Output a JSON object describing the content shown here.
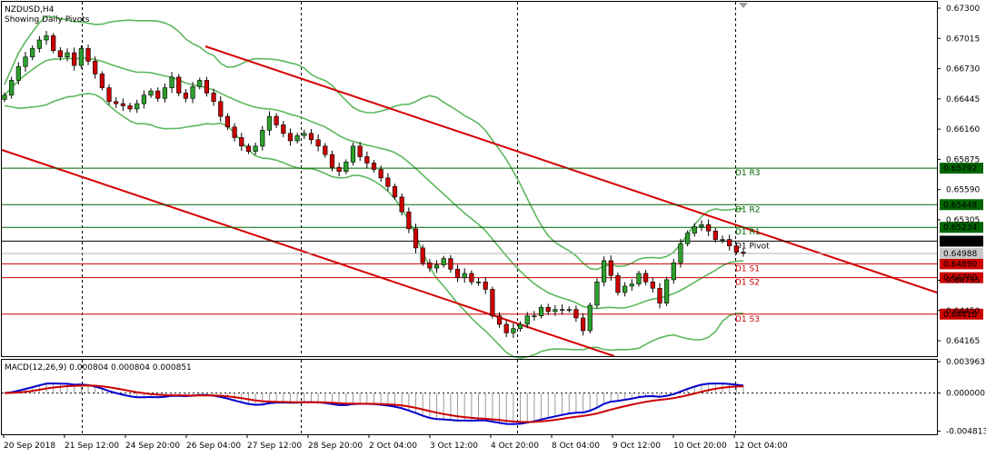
{
  "chart_data": {
    "type": "candlestick",
    "symbol_label": "NZDUSD,H4",
    "indicator_label": "Showing Daily Pivots",
    "price_axis": {
      "ticks": [
        "0.67300",
        "0.67015",
        "0.66730",
        "0.66445",
        "0.66160",
        "0.65875",
        "0.65590",
        "0.65305",
        "0.64735",
        "0.64450",
        "0.64165"
      ],
      "range": [
        0.6402,
        0.6736
      ]
    },
    "time_axis": {
      "labels": [
        "20 Sep 2018",
        "21 Sep 12:00",
        "24 Sep 20:00",
        "26 Sep 04:00",
        "27 Sep 12:00",
        "28 Sep 20:00",
        "2 Oct 04:00",
        "3 Oct 12:00",
        "4 Oct 20:00",
        "8 Oct 04:00",
        "9 Oct 12:00",
        "10 Oct 20:00",
        "12 Oct 04:00"
      ],
      "dashed_verticals_at_label_index": [
        1,
        5,
        9,
        12
      ]
    },
    "pivots": [
      {
        "name": "D1 R3",
        "value": 0.65792,
        "value_label": "0.65792",
        "color": "#006400"
      },
      {
        "name": "D1 R2",
        "value": 0.65448,
        "value_label": "0.65448",
        "color": "#006400"
      },
      {
        "name": "D1 R1",
        "value": 0.65234,
        "value_label": "0.65234",
        "color": "#006400"
      },
      {
        "name": "D1 Pivot",
        "value": 0.65104,
        "value_label": "0.65104",
        "color": "#000000"
      },
      {
        "name": "D1 S1",
        "value": 0.6489,
        "value_label": "0.64890",
        "color": "#cc0000"
      },
      {
        "name": "D1 S2",
        "value": 0.6476,
        "value_label": "0.64760",
        "color": "#cc0000"
      },
      {
        "name": "D1 S3",
        "value": 0.64416,
        "value_label": "0.64416",
        "color": "#cc0000"
      }
    ],
    "current_price": {
      "value": 0.64988,
      "value_label": "0.64988"
    },
    "channel_color": "#d40000",
    "bollinger_color": "#5cb85c",
    "bull_color": "#2ca02c",
    "bear_color": "#cc0000",
    "close_series": [
      0.6648,
      0.6662,
      0.6675,
      0.6684,
      0.6692,
      0.67,
      0.6704,
      0.669,
      0.6684,
      0.6688,
      0.6676,
      0.6692,
      0.668,
      0.6668,
      0.6655,
      0.6642,
      0.664,
      0.6638,
      0.6635,
      0.664,
      0.6648,
      0.6652,
      0.6645,
      0.6655,
      0.6665,
      0.665,
      0.6645,
      0.6656,
      0.6662,
      0.665,
      0.6642,
      0.6628,
      0.6618,
      0.6608,
      0.66,
      0.6595,
      0.66,
      0.6615,
      0.6628,
      0.662,
      0.6612,
      0.6605,
      0.661,
      0.6612,
      0.6606,
      0.66,
      0.6592,
      0.658,
      0.6576,
      0.6585,
      0.66,
      0.659,
      0.6584,
      0.6578,
      0.657,
      0.6562,
      0.6552,
      0.6538,
      0.6522,
      0.6504,
      0.649,
      0.6485,
      0.6488,
      0.6494,
      0.6484,
      0.6476,
      0.648,
      0.6472,
      0.6472,
      0.6465,
      0.644,
      0.6432,
      0.6424,
      0.6428,
      0.6432,
      0.644,
      0.644,
      0.6448,
      0.6444,
      0.6446,
      0.6446,
      0.6446,
      0.6438,
      0.6426,
      0.645,
      0.6472,
      0.6492,
      0.6478,
      0.6462,
      0.6468,
      0.647,
      0.648,
      0.6472,
      0.6466,
      0.6452,
      0.6474,
      0.649,
      0.6508,
      0.6518,
      0.6524,
      0.6526,
      0.652,
      0.6512,
      0.6512,
      0.6506,
      0.65,
      0.6499
    ],
    "macd": {
      "label": "MACD(12,26,9) 0.000804 0.000804 0.000851",
      "axis_ticks": [
        "0.003963",
        "0.000000",
        "-0.004813"
      ],
      "range": [
        -0.0052,
        0.0042
      ],
      "main_color": "#0000cc",
      "signal_color": "#cc0000",
      "histogram_color": "#9a9a9a"
    }
  }
}
